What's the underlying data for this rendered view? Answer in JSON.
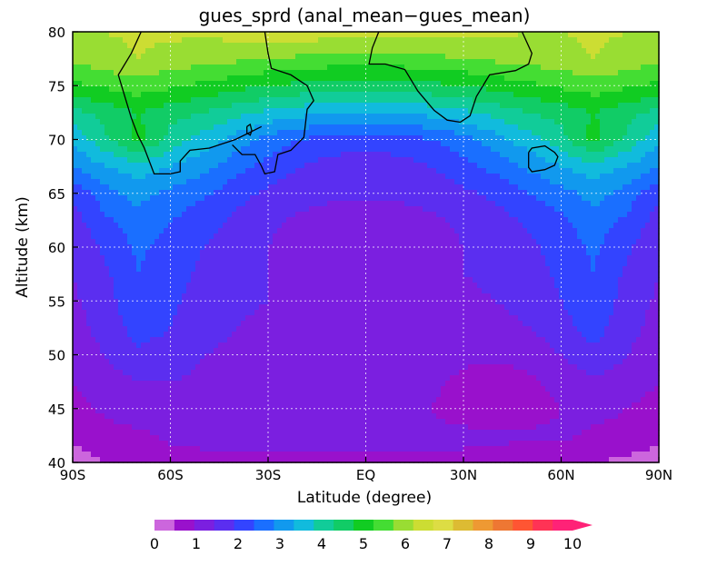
{
  "chart_data": {
    "type": "contour",
    "title": "gues_sprd (anal_mean−gues_mean)",
    "xlabel": "Latitude (degree)",
    "ylabel": "Altitude (km)",
    "xlim": [
      -90,
      90
    ],
    "ylim": [
      40,
      80
    ],
    "grid": true,
    "x_ticks": [
      {
        "value": -90,
        "label": "90S"
      },
      {
        "value": -60,
        "label": "60S"
      },
      {
        "value": -30,
        "label": "30S"
      },
      {
        "value": 0,
        "label": "EQ"
      },
      {
        "value": 30,
        "label": "30N"
      },
      {
        "value": 60,
        "label": "60N"
      },
      {
        "value": 90,
        "label": "90N"
      }
    ],
    "y_ticks": [
      {
        "value": 40,
        "label": "40"
      },
      {
        "value": 45,
        "label": "45"
      },
      {
        "value": 50,
        "label": "50"
      },
      {
        "value": 55,
        "label": "55"
      },
      {
        "value": 60,
        "label": "60"
      },
      {
        "value": 65,
        "label": "65"
      },
      {
        "value": 70,
        "label": "70"
      },
      {
        "value": 75,
        "label": "75"
      },
      {
        "value": 80,
        "label": "80"
      }
    ],
    "grid_x": [
      -90,
      -80,
      -70,
      -60,
      -50,
      -40,
      -30,
      -20,
      -10,
      0,
      10,
      20,
      30,
      40,
      50,
      60,
      70,
      80,
      90
    ],
    "grid_y": [
      40,
      42.5,
      45,
      47.5,
      50,
      52.5,
      55,
      57.5,
      60,
      62.5,
      65,
      67.5,
      70,
      72.5,
      75,
      77.5,
      80
    ],
    "values": [
      [
        0.3,
        0.5,
        0.7,
        0.8,
        0.9,
        0.9,
        0.9,
        0.9,
        0.9,
        0.9,
        0.9,
        0.9,
        0.9,
        0.8,
        0.7,
        0.6,
        0.5,
        0.4,
        0.3
      ],
      [
        0.6,
        0.8,
        0.9,
        1.1,
        1.1,
        1.1,
        1.1,
        1.1,
        1.1,
        1.1,
        1.1,
        1.1,
        1.1,
        1.1,
        1.1,
        1.1,
        0.9,
        0.8,
        0.6
      ],
      [
        0.8,
        1.1,
        1.3,
        1.3,
        1.2,
        1.2,
        1.2,
        1.2,
        1.2,
        1.3,
        1.2,
        1.0,
        0.8,
        0.6,
        0.7,
        1.0,
        1.2,
        1.0,
        0.8
      ],
      [
        1.0,
        1.3,
        1.5,
        1.5,
        1.4,
        1.3,
        1.2,
        1.2,
        1.2,
        1.3,
        1.2,
        1.1,
        0.9,
        0.7,
        0.9,
        1.2,
        1.4,
        1.3,
        1.0
      ],
      [
        1.2,
        1.5,
        1.9,
        1.8,
        1.5,
        1.4,
        1.3,
        1.3,
        1.3,
        1.4,
        1.3,
        1.2,
        1.1,
        1.1,
        1.2,
        1.5,
        1.9,
        1.5,
        1.2
      ],
      [
        1.3,
        1.7,
        2.2,
        2.0,
        1.7,
        1.5,
        1.4,
        1.4,
        1.3,
        1.3,
        1.3,
        1.3,
        1.3,
        1.3,
        1.5,
        1.8,
        2.2,
        1.7,
        1.3
      ],
      [
        1.4,
        1.8,
        2.4,
        2.1,
        1.8,
        1.6,
        1.5,
        1.4,
        1.3,
        1.3,
        1.3,
        1.3,
        1.4,
        1.5,
        1.7,
        2.0,
        2.4,
        1.8,
        1.4
      ],
      [
        1.5,
        1.9,
        2.5,
        2.2,
        1.9,
        1.7,
        1.5,
        1.4,
        1.3,
        1.1,
        1.2,
        1.3,
        1.5,
        1.6,
        1.8,
        2.1,
        2.5,
        1.9,
        1.5
      ],
      [
        1.6,
        2.1,
        2.6,
        2.3,
        2.0,
        1.8,
        1.5,
        1.3,
        1.2,
        1.2,
        1.2,
        1.3,
        1.5,
        1.7,
        1.9,
        2.2,
        2.6,
        2.1,
        1.6
      ],
      [
        1.8,
        2.4,
        2.8,
        2.5,
        2.2,
        1.9,
        1.6,
        1.4,
        1.3,
        1.3,
        1.3,
        1.4,
        1.6,
        1.8,
        2.1,
        2.4,
        2.8,
        2.4,
        1.8
      ],
      [
        2.1,
        2.8,
        3.2,
        2.9,
        2.6,
        2.2,
        1.9,
        1.7,
        1.6,
        1.6,
        1.6,
        1.7,
        1.9,
        2.1,
        2.5,
        2.8,
        3.2,
        2.8,
        2.1
      ],
      [
        3.0,
        3.5,
        3.8,
        3.5,
        3.2,
        2.7,
        2.3,
        2.0,
        1.8,
        1.7,
        1.8,
        2.0,
        2.3,
        2.7,
        3.1,
        3.5,
        3.8,
        3.5,
        3.0
      ],
      [
        3.6,
        4.4,
        5.2,
        4.3,
        3.8,
        3.3,
        2.8,
        2.5,
        2.3,
        2.2,
        2.3,
        2.5,
        2.8,
        3.3,
        3.8,
        4.3,
        5.2,
        4.4,
        3.6
      ],
      [
        4.3,
        4.7,
        5.0,
        4.7,
        4.5,
        4.2,
        3.9,
        3.7,
        3.5,
        3.5,
        3.5,
        3.7,
        3.9,
        4.2,
        4.5,
        4.7,
        5.0,
        4.7,
        4.3
      ],
      [
        5.4,
        5.6,
        5.8,
        5.6,
        5.4,
        5.2,
        5.0,
        4.9,
        4.8,
        4.8,
        4.8,
        4.9,
        5.0,
        5.2,
        5.4,
        5.6,
        5.8,
        5.6,
        5.4
      ],
      [
        6.1,
        6.3,
        6.5,
        6.3,
        6.2,
        6.1,
        6.0,
        5.9,
        5.8,
        5.8,
        5.8,
        5.9,
        6.0,
        6.1,
        6.2,
        6.3,
        6.5,
        6.3,
        6.1
      ],
      [
        6.4,
        6.5,
        6.6,
        6.6,
        6.6,
        6.7,
        6.8,
        6.9,
        6.7,
        6.6,
        6.6,
        6.6,
        6.6,
        6.6,
        6.5,
        6.5,
        6.6,
        6.5,
        6.4
      ]
    ],
    "zero_contour_paths": [
      [
        [
          -69,
          80
        ],
        [
          -72,
          78
        ],
        [
          -76,
          76
        ],
        [
          -74,
          74
        ],
        [
          -72,
          72
        ],
        [
          -70,
          70.4
        ],
        [
          -68,
          69.2
        ],
        [
          -66,
          67.6
        ],
        [
          -65,
          66.8
        ],
        [
          -60,
          66.8
        ],
        [
          -57,
          67.0
        ],
        [
          -57,
          68.0
        ],
        [
          -54,
          69.0
        ],
        [
          -48,
          69.2
        ],
        [
          -45,
          69.5
        ],
        [
          -40,
          70.0
        ],
        [
          -36,
          70.6
        ],
        [
          -32,
          71.2
        ]
      ],
      [
        [
          -31,
          80
        ],
        [
          -30,
          78
        ],
        [
          -29,
          76.6
        ],
        [
          -23,
          76.0
        ],
        [
          -18,
          75.0
        ],
        [
          -16,
          73.6
        ],
        [
          -18,
          72.8
        ],
        [
          -19,
          70.2
        ],
        [
          -23,
          69.0
        ],
        [
          -27,
          68.6
        ],
        [
          -28,
          67.0
        ],
        [
          -31,
          66.8
        ],
        [
          -32,
          67.5
        ],
        [
          -34,
          68.6
        ],
        [
          -38,
          68.6
        ],
        [
          -41,
          69.5
        ]
      ],
      [
        [
          4,
          80
        ],
        [
          2,
          78.5
        ],
        [
          1,
          77
        ],
        [
          6,
          77
        ],
        [
          12,
          76.5
        ],
        [
          16,
          74.5
        ],
        [
          21,
          72.7
        ],
        [
          25,
          71.8
        ],
        [
          29,
          71.6
        ],
        [
          32,
          72.2
        ],
        [
          34,
          74
        ],
        [
          38,
          76
        ],
        [
          46,
          76.4
        ],
        [
          50,
          77
        ],
        [
          51,
          78
        ],
        [
          48,
          80
        ]
      ],
      [
        [
          50,
          68.8
        ],
        [
          51,
          69.2
        ],
        [
          55,
          69.4
        ],
        [
          58,
          68.8
        ],
        [
          59,
          68.4
        ],
        [
          58,
          67.6
        ],
        [
          55,
          67.2
        ],
        [
          51,
          67.0
        ],
        [
          50,
          67.4
        ],
        [
          50,
          68.8
        ]
      ],
      [
        [
          -36.5,
          71.2
        ],
        [
          -35.5,
          71.4
        ],
        [
          -35.0,
          70.8
        ],
        [
          -35.5,
          70.4
        ],
        [
          -36.5,
          70.6
        ],
        [
          -36.5,
          71.2
        ]
      ]
    ],
    "colorbar": {
      "levels": [
        0,
        0.5,
        1,
        1.5,
        2,
        2.5,
        3,
        3.5,
        4,
        4.5,
        5,
        5.5,
        6,
        6.5,
        7,
        7.5,
        8,
        8.5,
        9,
        9.5,
        10
      ],
      "colors": [
        "#cc66dd",
        "#9911cc",
        "#7b1fe0",
        "#5b2ef0",
        "#3344ff",
        "#1a6fff",
        "#1199ee",
        "#11bbdd",
        "#11cc99",
        "#11cc66",
        "#11cc22",
        "#44dd33",
        "#99dd33",
        "#ccdd33",
        "#dddd44",
        "#ddbb33",
        "#ee9933",
        "#ee7733",
        "#ff5533",
        "#ff3355",
        "#ff2277"
      ],
      "tick_labels": [
        "0",
        "1",
        "2",
        "3",
        "4",
        "5",
        "6",
        "7",
        "8",
        "9",
        "10"
      ]
    }
  }
}
